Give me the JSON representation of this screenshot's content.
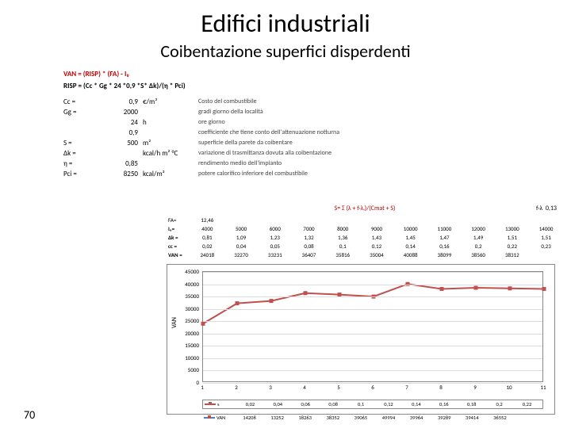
{
  "title": "Edifici industriali",
  "subtitle": "Coibentazione superfici disperdenti",
  "van_formula": "VAN = (RISP) * (FA) - I₀",
  "risp_formula": "RISP = (Cc * Gg * 24 *0,9 *S* Δk)/(η * Pci)",
  "params": [
    {
      "sym": "Cc =",
      "val": "0,9",
      "unit": "€/m³",
      "desc": "Costo del combustibile"
    },
    {
      "sym": "Gg =",
      "val": "2000",
      "unit": "",
      "desc": "gradi giorno della località"
    },
    {
      "sym": "",
      "val": "24",
      "unit": "h",
      "desc": "ore giorno"
    },
    {
      "sym": "",
      "val": "0,9",
      "unit": "",
      "desc": "coefficiente che tiene conto dell'attenuazione notturna"
    },
    {
      "sym": "S =",
      "val": "500",
      "unit": "m²",
      "desc": "superficie della parete da coibentare"
    },
    {
      "sym": "Δk =",
      "val": "",
      "unit": "kcal/h m² °C",
      "desc": "variazione di trasmittanza dovuta alla coibentazione"
    },
    {
      "sym": "η =",
      "val": "0,85",
      "unit": "",
      "desc": "rendimento medio dell'impianto"
    },
    {
      "sym": "Pci =",
      "val": "8250",
      "unit": "kcal/m³",
      "desc": "potere calorifico inferiore del combustibile"
    }
  ],
  "s_formula": "S= Σ (λ + f·λᵢ)/(Cmat + S)",
  "s_rhs": {
    "label": "f·λ",
    "val": "0,13"
  },
  "fa_line": {
    "label": "FA=",
    "val": "12,46"
  },
  "table": {
    "i0": [
      "4000",
      "5000",
      "6000",
      "7000",
      "8000",
      "9000",
      "10000",
      "11000",
      "12000",
      "13000",
      "14000"
    ],
    "ak": [
      "0,81",
      "1,09",
      "1,23",
      "1,32",
      "1,36",
      "1,43",
      "1,45",
      "1,47",
      "1,49",
      "1,51",
      "1,51"
    ],
    "cc": [
      "0,02",
      "0,04",
      "0,05",
      "0,08",
      "0,1",
      "0,12",
      "0,14",
      "0,16",
      "0,2",
      "0,22",
      "0,23"
    ],
    "van": [
      "24018",
      "32270",
      "33231",
      "36407",
      "35816",
      "35004",
      "40088",
      "38099",
      "38560",
      "38312",
      ""
    ]
  },
  "chart": {
    "type": "line",
    "ylabel": "VAN",
    "ylim": [
      0,
      45000
    ],
    "yticks": [
      0,
      5000,
      10000,
      15000,
      20000,
      25000,
      30000,
      35000,
      40000,
      45000
    ],
    "xvals": [
      1,
      2,
      3,
      4,
      5,
      6,
      7,
      8,
      9,
      10,
      11
    ],
    "series_s": [
      "0,02",
      "0,04",
      "0,06",
      "0,08",
      "0,1",
      "0,12",
      "0,14",
      "0,16",
      "0,18",
      "0,2",
      "0,22"
    ],
    "series_van": [
      24018,
      32270,
      33231,
      36407,
      35816,
      35004,
      40088,
      38099,
      38560,
      38312,
      38100
    ],
    "series_bottom": [
      "14208",
      "13252",
      "18263",
      "38352",
      "39065",
      "49994",
      "39964",
      "39289",
      "39414",
      "36552",
      ""
    ],
    "line_color": "#c0504d",
    "grid_color": "#dddddd",
    "axis_color": "#888888",
    "marker": "square",
    "marker_size": 5
  },
  "page_number": "70"
}
